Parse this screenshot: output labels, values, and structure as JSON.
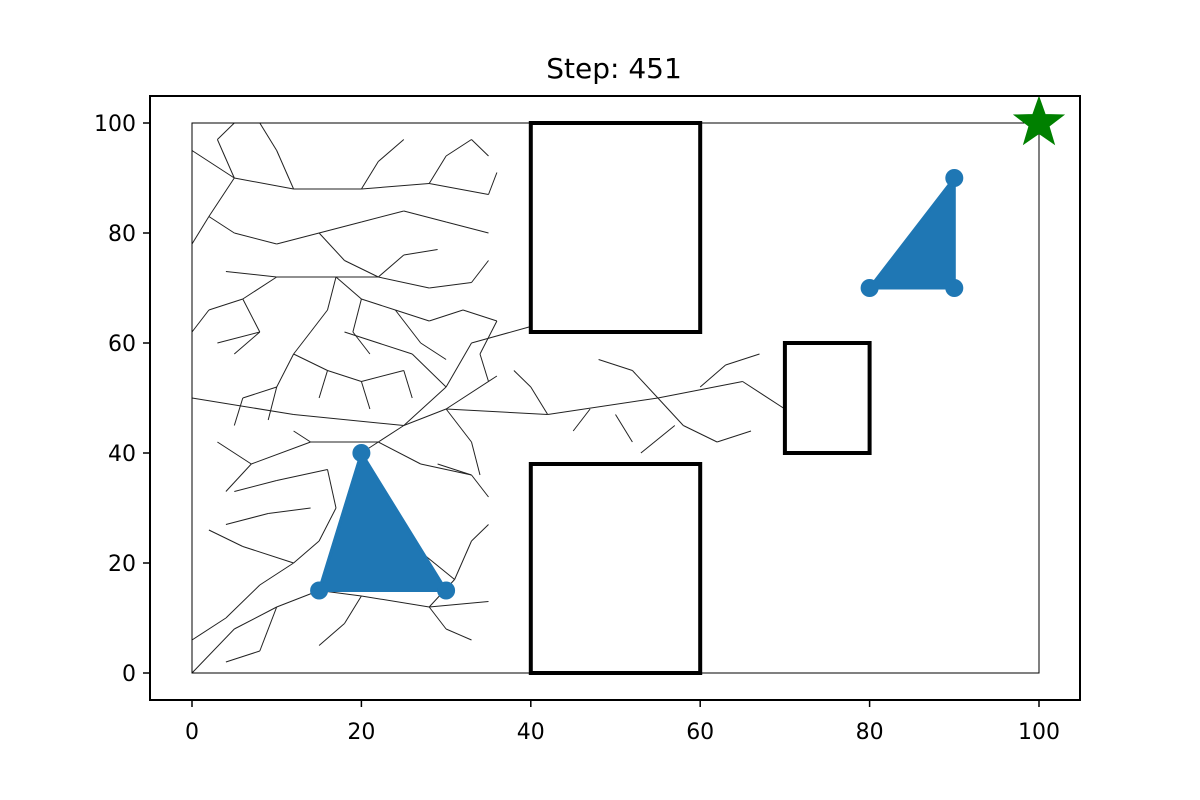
{
  "chart_data": {
    "type": "scatter",
    "title": "Step: 451",
    "xlabel": "",
    "ylabel": "",
    "xlim": [
      -5,
      105
    ],
    "ylim": [
      -5,
      105
    ],
    "x_ticks": [
      0,
      20,
      40,
      60,
      80,
      100
    ],
    "y_ticks": [
      0,
      20,
      40,
      60,
      80,
      100
    ],
    "x_tick_labels": [
      "0",
      "20",
      "40",
      "60",
      "80",
      "100"
    ],
    "y_tick_labels": [
      "0",
      "20",
      "40",
      "60",
      "80",
      "100"
    ],
    "grid": false,
    "workspace_boundary": [
      [
        0,
        0
      ],
      [
        100,
        0
      ],
      [
        100,
        100
      ],
      [
        0,
        100
      ]
    ],
    "obstacles": [
      {
        "x": [
          40,
          60
        ],
        "y": [
          62,
          100
        ]
      },
      {
        "x": [
          40,
          60
        ],
        "y": [
          0,
          38
        ]
      },
      {
        "x": [
          70,
          80
        ],
        "y": [
          40,
          60
        ]
      }
    ],
    "start_triangle": [
      [
        15,
        15
      ],
      [
        20,
        40
      ],
      [
        30,
        15
      ]
    ],
    "goal_triangle": [
      [
        80,
        70
      ],
      [
        90,
        90
      ],
      [
        90,
        70
      ]
    ],
    "goal_marker": [
      100,
      100
    ],
    "colors": {
      "triangle": "#1f77b4",
      "goal_star": "#008000",
      "tree_edges": "#222222",
      "obstacle": "#000000"
    },
    "tree_edges": [
      [
        [
          0,
          50
        ],
        [
          12,
          47
        ]
      ],
      [
        [
          12,
          47
        ],
        [
          25,
          45
        ]
      ],
      [
        [
          25,
          45
        ],
        [
          30,
          48
        ]
      ],
      [
        [
          30,
          48
        ],
        [
          42,
          47
        ]
      ],
      [
        [
          42,
          47
        ],
        [
          55,
          50
        ]
      ],
      [
        [
          55,
          50
        ],
        [
          65,
          53
        ]
      ],
      [
        [
          65,
          53
        ],
        [
          70,
          48
        ]
      ],
      [
        [
          25,
          45
        ],
        [
          22,
          42
        ]
      ],
      [
        [
          22,
          42
        ],
        [
          20,
          40
        ]
      ],
      [
        [
          22,
          42
        ],
        [
          14,
          42
        ]
      ],
      [
        [
          14,
          42
        ],
        [
          7,
          38
        ]
      ],
      [
        [
          22,
          42
        ],
        [
          27,
          38
        ]
      ],
      [
        [
          27,
          38
        ],
        [
          33,
          36
        ]
      ],
      [
        [
          25,
          45
        ],
        [
          30,
          52
        ]
      ],
      [
        [
          30,
          52
        ],
        [
          33,
          60
        ]
      ],
      [
        [
          33,
          60
        ],
        [
          40,
          63
        ]
      ],
      [
        [
          30,
          52
        ],
        [
          26,
          58
        ]
      ],
      [
        [
          26,
          58
        ],
        [
          18,
          62
        ]
      ],
      [
        [
          30,
          48
        ],
        [
          33,
          42
        ]
      ],
      [
        [
          33,
          42
        ],
        [
          34,
          36
        ]
      ],
      [
        [
          30,
          48
        ],
        [
          36,
          54
        ]
      ],
      [
        [
          42,
          47
        ],
        [
          40,
          52
        ]
      ],
      [
        [
          40,
          52
        ],
        [
          38,
          55
        ]
      ],
      [
        [
          55,
          50
        ],
        [
          58,
          45
        ]
      ],
      [
        [
          58,
          45
        ],
        [
          62,
          42
        ]
      ],
      [
        [
          62,
          42
        ],
        [
          66,
          44
        ]
      ],
      [
        [
          55,
          50
        ],
        [
          52,
          55
        ]
      ],
      [
        [
          52,
          55
        ],
        [
          48,
          57
        ]
      ],
      [
        [
          60,
          52
        ],
        [
          63,
          56
        ]
      ],
      [
        [
          63,
          56
        ],
        [
          67,
          58
        ]
      ],
      [
        [
          47,
          48
        ],
        [
          45,
          44
        ]
      ],
      [
        [
          50,
          47
        ],
        [
          52,
          42
        ]
      ],
      [
        [
          57,
          45
        ],
        [
          53,
          40
        ]
      ],
      [
        [
          16,
          37
        ],
        [
          10,
          35
        ]
      ],
      [
        [
          10,
          35
        ],
        [
          5,
          33
        ]
      ],
      [
        [
          16,
          37
        ],
        [
          17,
          30
        ]
      ],
      [
        [
          17,
          30
        ],
        [
          15,
          24
        ]
      ],
      [
        [
          15,
          24
        ],
        [
          12,
          20
        ]
      ],
      [
        [
          12,
          20
        ],
        [
          8,
          16
        ]
      ],
      [
        [
          8,
          16
        ],
        [
          4,
          10
        ]
      ],
      [
        [
          4,
          10
        ],
        [
          0,
          6
        ]
      ],
      [
        [
          12,
          20
        ],
        [
          6,
          23
        ]
      ],
      [
        [
          6,
          23
        ],
        [
          2,
          26
        ]
      ],
      [
        [
          15,
          15
        ],
        [
          20,
          14
        ]
      ],
      [
        [
          20,
          14
        ],
        [
          28,
          12
        ]
      ],
      [
        [
          28,
          12
        ],
        [
          35,
          13
        ]
      ],
      [
        [
          20,
          14
        ],
        [
          18,
          9
        ]
      ],
      [
        [
          18,
          9
        ],
        [
          15,
          5
        ]
      ],
      [
        [
          28,
          12
        ],
        [
          30,
          8
        ]
      ],
      [
        [
          30,
          8
        ],
        [
          33,
          6
        ]
      ],
      [
        [
          15,
          15
        ],
        [
          10,
          12
        ]
      ],
      [
        [
          10,
          12
        ],
        [
          5,
          8
        ]
      ],
      [
        [
          5,
          8
        ],
        [
          0,
          0
        ]
      ],
      [
        [
          10,
          12
        ],
        [
          8,
          4
        ]
      ],
      [
        [
          8,
          4
        ],
        [
          4,
          2
        ]
      ],
      [
        [
          28,
          12
        ],
        [
          31,
          17
        ]
      ],
      [
        [
          31,
          17
        ],
        [
          33,
          24
        ]
      ],
      [
        [
          33,
          24
        ],
        [
          35,
          27
        ]
      ],
      [
        [
          31,
          17
        ],
        [
          27,
          22
        ]
      ],
      [
        [
          27,
          22
        ],
        [
          24,
          26
        ]
      ],
      [
        [
          24,
          26
        ],
        [
          19,
          30
        ]
      ],
      [
        [
          33,
          36
        ],
        [
          35,
          32
        ]
      ],
      [
        [
          33,
          36
        ],
        [
          29,
          38
        ]
      ],
      [
        [
          7,
          38
        ],
        [
          3,
          42
        ]
      ],
      [
        [
          7,
          38
        ],
        [
          4,
          33
        ]
      ],
      [
        [
          14,
          42
        ],
        [
          12,
          44
        ]
      ],
      [
        [
          14,
          30
        ],
        [
          9,
          29
        ]
      ],
      [
        [
          9,
          29
        ],
        [
          4,
          27
        ]
      ],
      [
        [
          0,
          95
        ],
        [
          5,
          90
        ]
      ],
      [
        [
          5,
          90
        ],
        [
          12,
          88
        ]
      ],
      [
        [
          12,
          88
        ],
        [
          20,
          88
        ]
      ],
      [
        [
          20,
          88
        ],
        [
          28,
          89
        ]
      ],
      [
        [
          28,
          89
        ],
        [
          35,
          87
        ]
      ],
      [
        [
          5,
          90
        ],
        [
          3,
          97
        ]
      ],
      [
        [
          3,
          97
        ],
        [
          5,
          100
        ]
      ],
      [
        [
          20,
          88
        ],
        [
          22,
          93
        ]
      ],
      [
        [
          22,
          93
        ],
        [
          25,
          97
        ]
      ],
      [
        [
          28,
          89
        ],
        [
          30,
          94
        ]
      ],
      [
        [
          30,
          94
        ],
        [
          33,
          97
        ]
      ],
      [
        [
          33,
          97
        ],
        [
          35,
          94
        ]
      ],
      [
        [
          12,
          88
        ],
        [
          10,
          95
        ]
      ],
      [
        [
          10,
          95
        ],
        [
          8,
          100
        ]
      ],
      [
        [
          5,
          90
        ],
        [
          2,
          83
        ]
      ],
      [
        [
          2,
          83
        ],
        [
          5,
          80
        ]
      ],
      [
        [
          5,
          80
        ],
        [
          10,
          78
        ]
      ],
      [
        [
          10,
          78
        ],
        [
          15,
          80
        ]
      ],
      [
        [
          15,
          80
        ],
        [
          20,
          82
        ]
      ],
      [
        [
          20,
          82
        ],
        [
          25,
          84
        ]
      ],
      [
        [
          25,
          84
        ],
        [
          30,
          82
        ]
      ],
      [
        [
          30,
          82
        ],
        [
          35,
          80
        ]
      ],
      [
        [
          15,
          80
        ],
        [
          18,
          75
        ]
      ],
      [
        [
          18,
          75
        ],
        [
          22,
          72
        ]
      ],
      [
        [
          22,
          72
        ],
        [
          28,
          70
        ]
      ],
      [
        [
          28,
          70
        ],
        [
          33,
          71
        ]
      ],
      [
        [
          33,
          71
        ],
        [
          35,
          75
        ]
      ],
      [
        [
          22,
          72
        ],
        [
          25,
          76
        ]
      ],
      [
        [
          25,
          76
        ],
        [
          29,
          77
        ]
      ],
      [
        [
          4,
          73
        ],
        [
          10,
          72
        ]
      ],
      [
        [
          10,
          72
        ],
        [
          17,
          72
        ]
      ],
      [
        [
          17,
          72
        ],
        [
          22,
          72
        ]
      ],
      [
        [
          10,
          72
        ],
        [
          6,
          68
        ]
      ],
      [
        [
          6,
          68
        ],
        [
          2,
          66
        ]
      ],
      [
        [
          6,
          68
        ],
        [
          8,
          62
        ]
      ],
      [
        [
          8,
          62
        ],
        [
          5,
          58
        ]
      ],
      [
        [
          17,
          72
        ],
        [
          16,
          66
        ]
      ],
      [
        [
          16,
          66
        ],
        [
          14,
          62
        ]
      ],
      [
        [
          14,
          62
        ],
        [
          12,
          58
        ]
      ],
      [
        [
          17,
          72
        ],
        [
          20,
          68
        ]
      ],
      [
        [
          20,
          68
        ],
        [
          24,
          66
        ]
      ],
      [
        [
          24,
          66
        ],
        [
          28,
          64
        ]
      ],
      [
        [
          28,
          64
        ],
        [
          32,
          66
        ]
      ],
      [
        [
          32,
          66
        ],
        [
          36,
          64
        ]
      ],
      [
        [
          12,
          58
        ],
        [
          10,
          52
        ]
      ],
      [
        [
          10,
          52
        ],
        [
          6,
          50
        ]
      ],
      [
        [
          12,
          58
        ],
        [
          16,
          55
        ]
      ],
      [
        [
          16,
          55
        ],
        [
          20,
          53
        ]
      ],
      [
        [
          20,
          53
        ],
        [
          25,
          55
        ]
      ],
      [
        [
          8,
          62
        ],
        [
          3,
          60
        ]
      ],
      [
        [
          20,
          68
        ],
        [
          19,
          62
        ]
      ],
      [
        [
          19,
          62
        ],
        [
          21,
          58
        ]
      ],
      [
        [
          24,
          66
        ],
        [
          27,
          60
        ]
      ],
      [
        [
          27,
          60
        ],
        [
          30,
          57
        ]
      ],
      [
        [
          36,
          64
        ],
        [
          34,
          58
        ]
      ],
      [
        [
          34,
          58
        ],
        [
          35,
          53
        ]
      ],
      [
        [
          6,
          50
        ],
        [
          5,
          45
        ]
      ],
      [
        [
          10,
          52
        ],
        [
          9,
          46
        ]
      ],
      [
        [
          16,
          55
        ],
        [
          15,
          50
        ]
      ],
      [
        [
          20,
          53
        ],
        [
          21,
          48
        ]
      ],
      [
        [
          25,
          55
        ],
        [
          26,
          50
        ]
      ],
      [
        [
          2,
          66
        ],
        [
          0,
          62
        ]
      ],
      [
        [
          2,
          83
        ],
        [
          0,
          78
        ]
      ],
      [
        [
          35,
          87
        ],
        [
          36,
          91
        ]
      ]
    ]
  }
}
